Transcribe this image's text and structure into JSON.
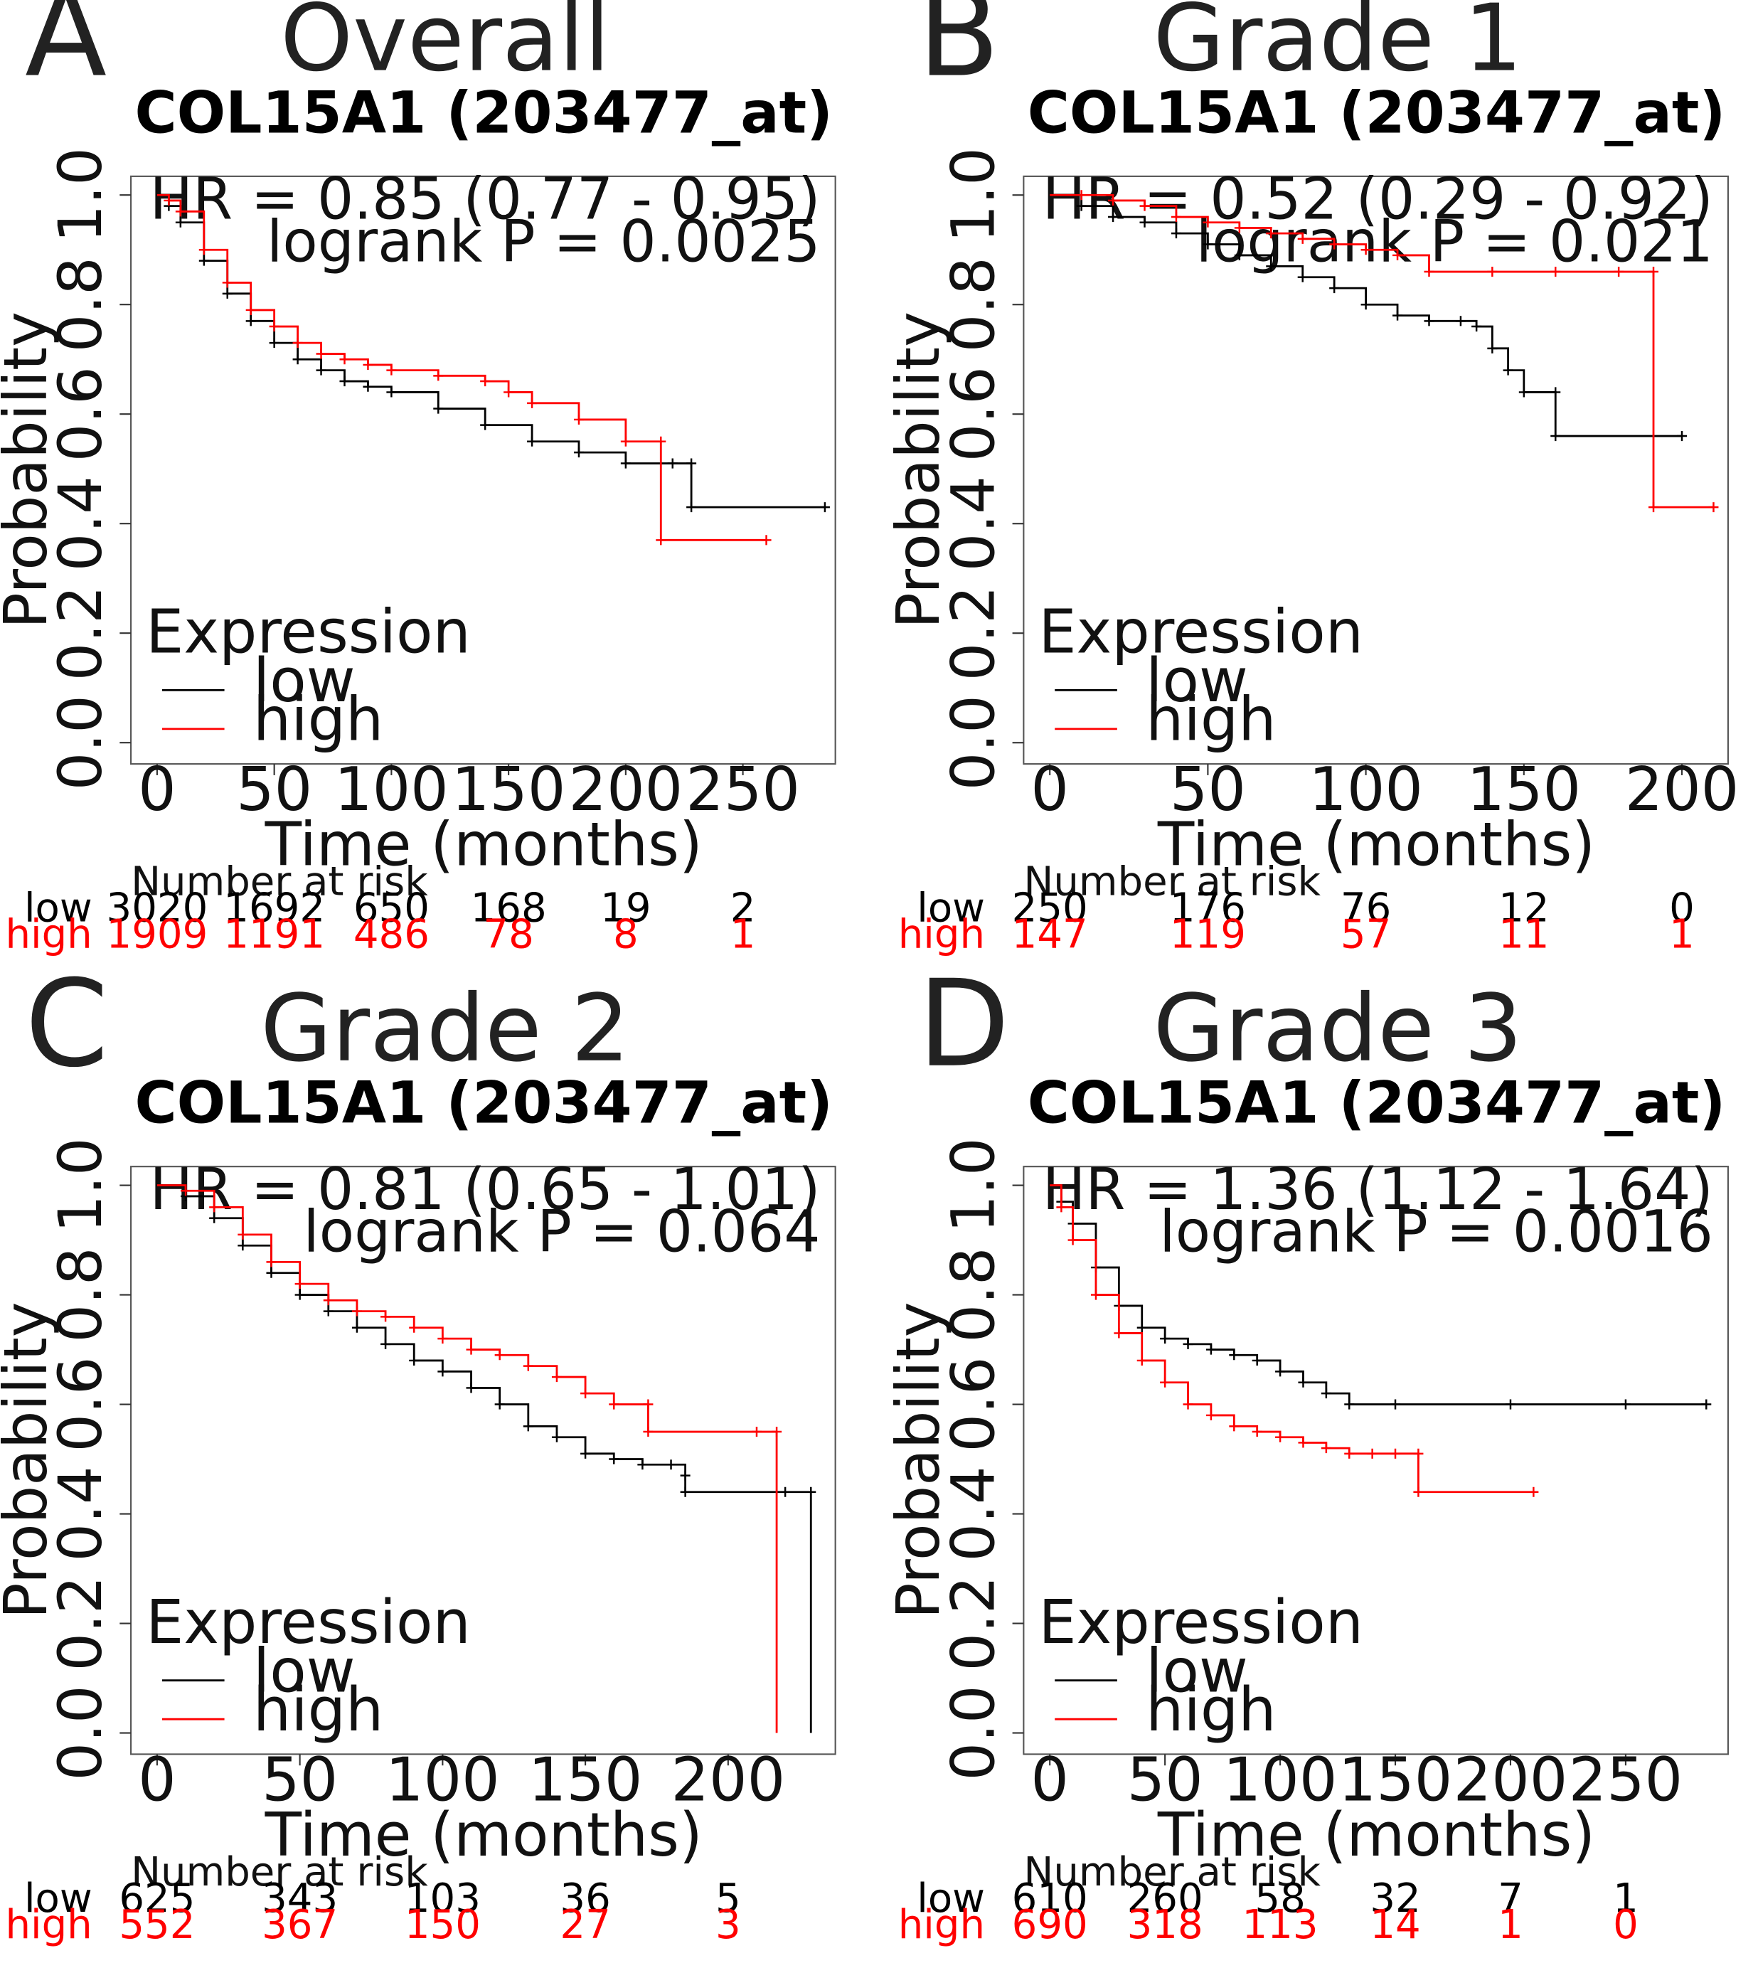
{
  "chart_data": [
    {
      "type": "line",
      "subtype": "kaplan-meier",
      "panel": "A",
      "title": "Overall",
      "subtitle": "COL15A1 (203477_at)",
      "xlabel": "Time (months)",
      "ylabel": "Probability",
      "xlim": [
        0,
        290
      ],
      "ylim": [
        0,
        1.0
      ],
      "xticks": [
        0,
        50,
        100,
        150,
        200,
        250
      ],
      "yticks": [
        0.0,
        0.2,
        0.4,
        0.6,
        0.8,
        1.0
      ],
      "ytick_labels": [
        "0.0",
        "0.2",
        "0.4",
        "0.6",
        "0.8",
        "1.0"
      ],
      "hr_text": "HR = 0.85 (0.77 - 0.95)",
      "p_text": "logrank P = 0.0025",
      "legend_title": "Expression",
      "colors": {
        "low": "#000000",
        "high": "#ff0000"
      },
      "series": [
        {
          "name": "low",
          "x": [
            0,
            5,
            10,
            20,
            30,
            40,
            50,
            60,
            70,
            80,
            90,
            100,
            120,
            140,
            160,
            180,
            200,
            220,
            228,
            228,
            285
          ],
          "y": [
            1.0,
            0.98,
            0.95,
            0.88,
            0.82,
            0.77,
            0.73,
            0.7,
            0.68,
            0.66,
            0.65,
            0.64,
            0.61,
            0.58,
            0.55,
            0.53,
            0.51,
            0.51,
            0.51,
            0.43,
            0.43
          ]
        },
        {
          "name": "high",
          "x": [
            0,
            5,
            10,
            20,
            30,
            40,
            50,
            60,
            70,
            80,
            90,
            100,
            120,
            140,
            150,
            160,
            180,
            200,
            215,
            215,
            260
          ],
          "y": [
            1.0,
            0.99,
            0.97,
            0.9,
            0.84,
            0.79,
            0.76,
            0.73,
            0.71,
            0.7,
            0.69,
            0.68,
            0.67,
            0.66,
            0.64,
            0.62,
            0.59,
            0.55,
            0.55,
            0.37,
            0.37
          ]
        }
      ],
      "risk_header": "Number at risk",
      "risk_times": [
        0,
        50,
        100,
        150,
        200,
        250
      ],
      "risk_table": [
        {
          "name": "low",
          "values": [
            "3020",
            "1692",
            "650",
            "168",
            "19",
            "2"
          ]
        },
        {
          "name": "high",
          "values": [
            "1909",
            "1191",
            "486",
            "78",
            "8",
            "1"
          ]
        }
      ]
    },
    {
      "type": "line",
      "subtype": "kaplan-meier",
      "panel": "B",
      "title": "Grade 1",
      "subtitle": "COL15A1 (203477_at)",
      "xlabel": "Time (months)",
      "ylabel": "Probability",
      "xlim": [
        0,
        215
      ],
      "ylim": [
        0,
        1.0
      ],
      "xticks": [
        0,
        50,
        100,
        150,
        200
      ],
      "yticks": [
        0.0,
        0.2,
        0.4,
        0.6,
        0.8,
        1.0
      ],
      "ytick_labels": [
        "0.0",
        "0.2",
        "0.4",
        "0.6",
        "0.8",
        "1.0"
      ],
      "hr_text": "HR = 0.52 (0.29 - 0.92)",
      "p_text": "logrank P = 0.021",
      "legend_title": "Expression",
      "colors": {
        "low": "#000000",
        "high": "#ff0000"
      },
      "series": [
        {
          "name": "low",
          "x": [
            0,
            10,
            20,
            30,
            40,
            50,
            60,
            70,
            80,
            90,
            100,
            110,
            120,
            130,
            135,
            140,
            145,
            150,
            160,
            160,
            200
          ],
          "y": [
            1.0,
            0.98,
            0.96,
            0.95,
            0.93,
            0.91,
            0.89,
            0.87,
            0.85,
            0.83,
            0.8,
            0.78,
            0.77,
            0.77,
            0.76,
            0.72,
            0.68,
            0.64,
            0.64,
            0.56,
            0.56
          ]
        },
        {
          "name": "high",
          "x": [
            0,
            10,
            20,
            30,
            40,
            50,
            60,
            70,
            80,
            90,
            100,
            110,
            120,
            140,
            160,
            180,
            191,
            191,
            210
          ],
          "y": [
            1.0,
            1.0,
            0.99,
            0.98,
            0.96,
            0.95,
            0.94,
            0.93,
            0.92,
            0.91,
            0.9,
            0.89,
            0.86,
            0.86,
            0.86,
            0.86,
            0.86,
            0.43,
            0.43
          ]
        }
      ],
      "risk_header": "Number at risk",
      "risk_times": [
        0,
        50,
        100,
        150,
        200
      ],
      "risk_table": [
        {
          "name": "low",
          "values": [
            "250",
            "176",
            "76",
            "12",
            "0"
          ]
        },
        {
          "name": "high",
          "values": [
            "147",
            "119",
            "57",
            "11",
            "1"
          ]
        }
      ]
    },
    {
      "type": "line",
      "subtype": "kaplan-meier",
      "panel": "C",
      "title": "Grade 2",
      "subtitle": "COL15A1 (203477_at)",
      "xlabel": "Time (months)",
      "ylabel": "Probability",
      "xlim": [
        0,
        238
      ],
      "ylim": [
        0,
        1.0
      ],
      "xticks": [
        0,
        50,
        100,
        150,
        200
      ],
      "yticks": [
        0.0,
        0.2,
        0.4,
        0.6,
        0.8,
        1.0
      ],
      "ytick_labels": [
        "0.0",
        "0.2",
        "0.4",
        "0.6",
        "0.8",
        "1.0"
      ],
      "hr_text": "HR = 0.81 (0.65 - 1.01)",
      "p_text": "logrank P = 0.064",
      "legend_title": "Expression",
      "colors": {
        "low": "#000000",
        "high": "#ff0000"
      },
      "series": [
        {
          "name": "low",
          "x": [
            0,
            10,
            20,
            30,
            40,
            50,
            60,
            70,
            80,
            90,
            100,
            110,
            120,
            130,
            140,
            150,
            160,
            170,
            180,
            185,
            185,
            220,
            229,
            229
          ],
          "y": [
            1.0,
            0.98,
            0.94,
            0.89,
            0.84,
            0.8,
            0.77,
            0.74,
            0.71,
            0.68,
            0.66,
            0.63,
            0.6,
            0.56,
            0.54,
            0.51,
            0.5,
            0.49,
            0.49,
            0.47,
            0.44,
            0.44,
            0.44,
            0.0
          ]
        },
        {
          "name": "high",
          "x": [
            0,
            10,
            20,
            30,
            40,
            50,
            60,
            70,
            80,
            90,
            100,
            110,
            120,
            130,
            140,
            150,
            160,
            172,
            172,
            210,
            217,
            217
          ],
          "y": [
            1.0,
            0.99,
            0.96,
            0.91,
            0.86,
            0.82,
            0.79,
            0.77,
            0.76,
            0.74,
            0.72,
            0.7,
            0.69,
            0.67,
            0.65,
            0.62,
            0.6,
            0.6,
            0.55,
            0.55,
            0.55,
            0.0
          ]
        }
      ],
      "risk_header": "Number at risk",
      "risk_times": [
        0,
        50,
        100,
        150,
        200
      ],
      "risk_table": [
        {
          "name": "low",
          "values": [
            "625",
            "343",
            "103",
            "36",
            "5"
          ]
        },
        {
          "name": "high",
          "values": [
            "552",
            "367",
            "150",
            "27",
            "3"
          ]
        }
      ]
    },
    {
      "type": "line",
      "subtype": "kaplan-meier",
      "panel": "D",
      "title": "Grade 3",
      "subtitle": "COL15A1 (203477_at)",
      "xlabel": "Time (months)",
      "ylabel": "Probability",
      "xlim": [
        0,
        295
      ],
      "ylim": [
        0,
        1.0
      ],
      "xticks": [
        0,
        50,
        100,
        150,
        200,
        250
      ],
      "yticks": [
        0.0,
        0.2,
        0.4,
        0.6,
        0.8,
        1.0
      ],
      "ytick_labels": [
        "0.0",
        "0.2",
        "0.4",
        "0.6",
        "0.8",
        "1.0"
      ],
      "hr_text": "HR = 1.36 (1.12 - 1.64)",
      "p_text": "logrank P = 0.0016",
      "legend_title": "Expression",
      "colors": {
        "low": "#000000",
        "high": "#ff0000"
      },
      "series": [
        {
          "name": "low",
          "x": [
            0,
            5,
            10,
            20,
            30,
            40,
            50,
            60,
            70,
            80,
            90,
            100,
            110,
            120,
            130,
            150,
            200,
            250,
            285
          ],
          "y": [
            1.0,
            0.97,
            0.93,
            0.85,
            0.78,
            0.74,
            0.72,
            0.71,
            0.7,
            0.69,
            0.68,
            0.66,
            0.64,
            0.62,
            0.6,
            0.6,
            0.6,
            0.6,
            0.6
          ]
        },
        {
          "name": "high",
          "x": [
            0,
            5,
            10,
            20,
            30,
            40,
            50,
            60,
            70,
            80,
            90,
            100,
            110,
            120,
            130,
            140,
            150,
            160,
            160,
            210
          ],
          "y": [
            1.0,
            0.96,
            0.9,
            0.8,
            0.73,
            0.68,
            0.64,
            0.6,
            0.58,
            0.56,
            0.55,
            0.54,
            0.53,
            0.52,
            0.51,
            0.51,
            0.51,
            0.51,
            0.44,
            0.44
          ]
        }
      ],
      "risk_header": "Number at risk",
      "risk_times": [
        0,
        50,
        100,
        150,
        200,
        250
      ],
      "risk_table": [
        {
          "name": "low",
          "values": [
            "610",
            "260",
            "58",
            "32",
            "7",
            "1"
          ]
        },
        {
          "name": "high",
          "values": [
            "690",
            "318",
            "113",
            "14",
            "1",
            "0"
          ]
        }
      ]
    }
  ]
}
